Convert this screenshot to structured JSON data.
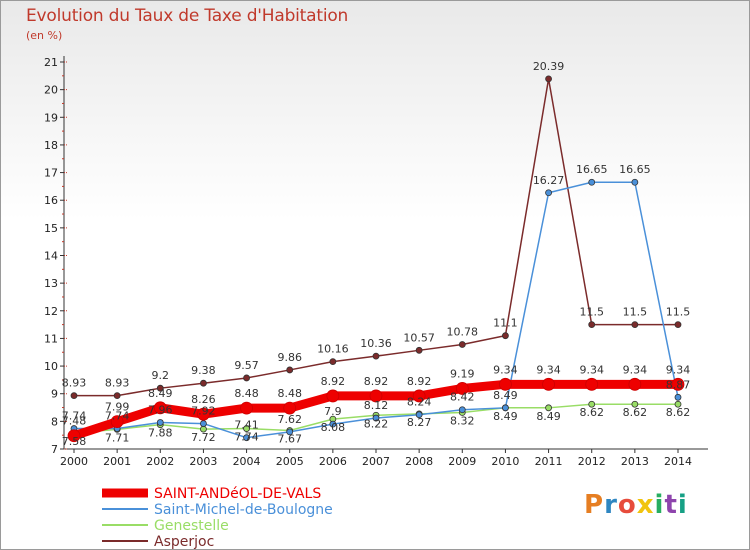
{
  "header": {
    "title": "Evolution du Taux de Taxe d'Habitation",
    "subtitle": "(en %)"
  },
  "logo": {
    "text": "Proxiti",
    "colors": [
      "#e67e22",
      "#2e86c1",
      "#e74c3c",
      "#f1c40f",
      "#27ae60",
      "#8e44ad",
      "#16a085"
    ]
  },
  "chart_data": {
    "type": "line",
    "x": [
      2000,
      2001,
      2002,
      2003,
      2004,
      2005,
      2006,
      2007,
      2008,
      2009,
      2010,
      2011,
      2012,
      2013,
      2014
    ],
    "ylim": [
      7,
      21
    ],
    "yticks": [
      7,
      8,
      9,
      10,
      11,
      12,
      13,
      14,
      15,
      16,
      17,
      18,
      19,
      20,
      21
    ],
    "legend_position": "bottom-left",
    "series": [
      {
        "name": "SAINT-ANDéOL-DE-VALS",
        "color": "#ee0000",
        "values": [
          7.48,
          7.99,
          8.49,
          8.26,
          8.48,
          8.48,
          8.92,
          8.92,
          8.92,
          9.19,
          9.34,
          9.34,
          9.34,
          9.34,
          9.34
        ],
        "labels": [
          "7.48",
          "7.99",
          "8.49",
          "8.26",
          "8.48",
          "8.48",
          "8.92",
          "8.92",
          "8.92",
          "9.19",
          "9.34",
          "9.34",
          "9.34",
          "9.34",
          "9.34"
        ]
      },
      {
        "name": "Saint-Michel-de-Boulogne",
        "color": "#4a90d9",
        "values": [
          7.74,
          7.74,
          7.96,
          7.92,
          7.41,
          7.62,
          7.9,
          8.12,
          8.24,
          8.42,
          8.49,
          16.27,
          16.65,
          16.65,
          8.87
        ],
        "labels": [
          "7.74",
          "7.74",
          "7.96",
          "7.92",
          "7.41",
          "7.62",
          "7.9",
          "8.12",
          "8.24",
          "8.42",
          "8.49",
          "16.27",
          "16.65",
          "16.65",
          "8.87"
        ]
      },
      {
        "name": "Genestelle",
        "color": "#99dd66",
        "values": [
          7.58,
          7.71,
          7.88,
          7.72,
          7.74,
          7.67,
          8.08,
          8.22,
          8.27,
          8.32,
          8.49,
          8.49,
          8.62,
          8.62,
          8.62
        ],
        "labels": [
          "7.58",
          "7.71",
          "7.88",
          "7.72",
          "7.74",
          "7.67",
          "8.08",
          "8.22",
          "8.27",
          "8.32",
          "8.49",
          "8.49",
          "8.62",
          "8.62",
          "8.62"
        ]
      },
      {
        "name": "Asperjoc",
        "color": "#7b2b2b",
        "values": [
          8.93,
          8.93,
          9.2,
          9.38,
          9.57,
          9.86,
          10.16,
          10.36,
          10.57,
          10.78,
          11.1,
          20.39,
          11.5,
          11.5,
          11.5
        ],
        "labels": [
          "8.93",
          "8.93",
          "9.2",
          "9.38",
          "9.57",
          "9.86",
          "10.16",
          "10.36",
          "10.57",
          "10.78",
          "11.1",
          "20.39",
          "11.5",
          "11.5",
          "11.5"
        ]
      }
    ]
  }
}
